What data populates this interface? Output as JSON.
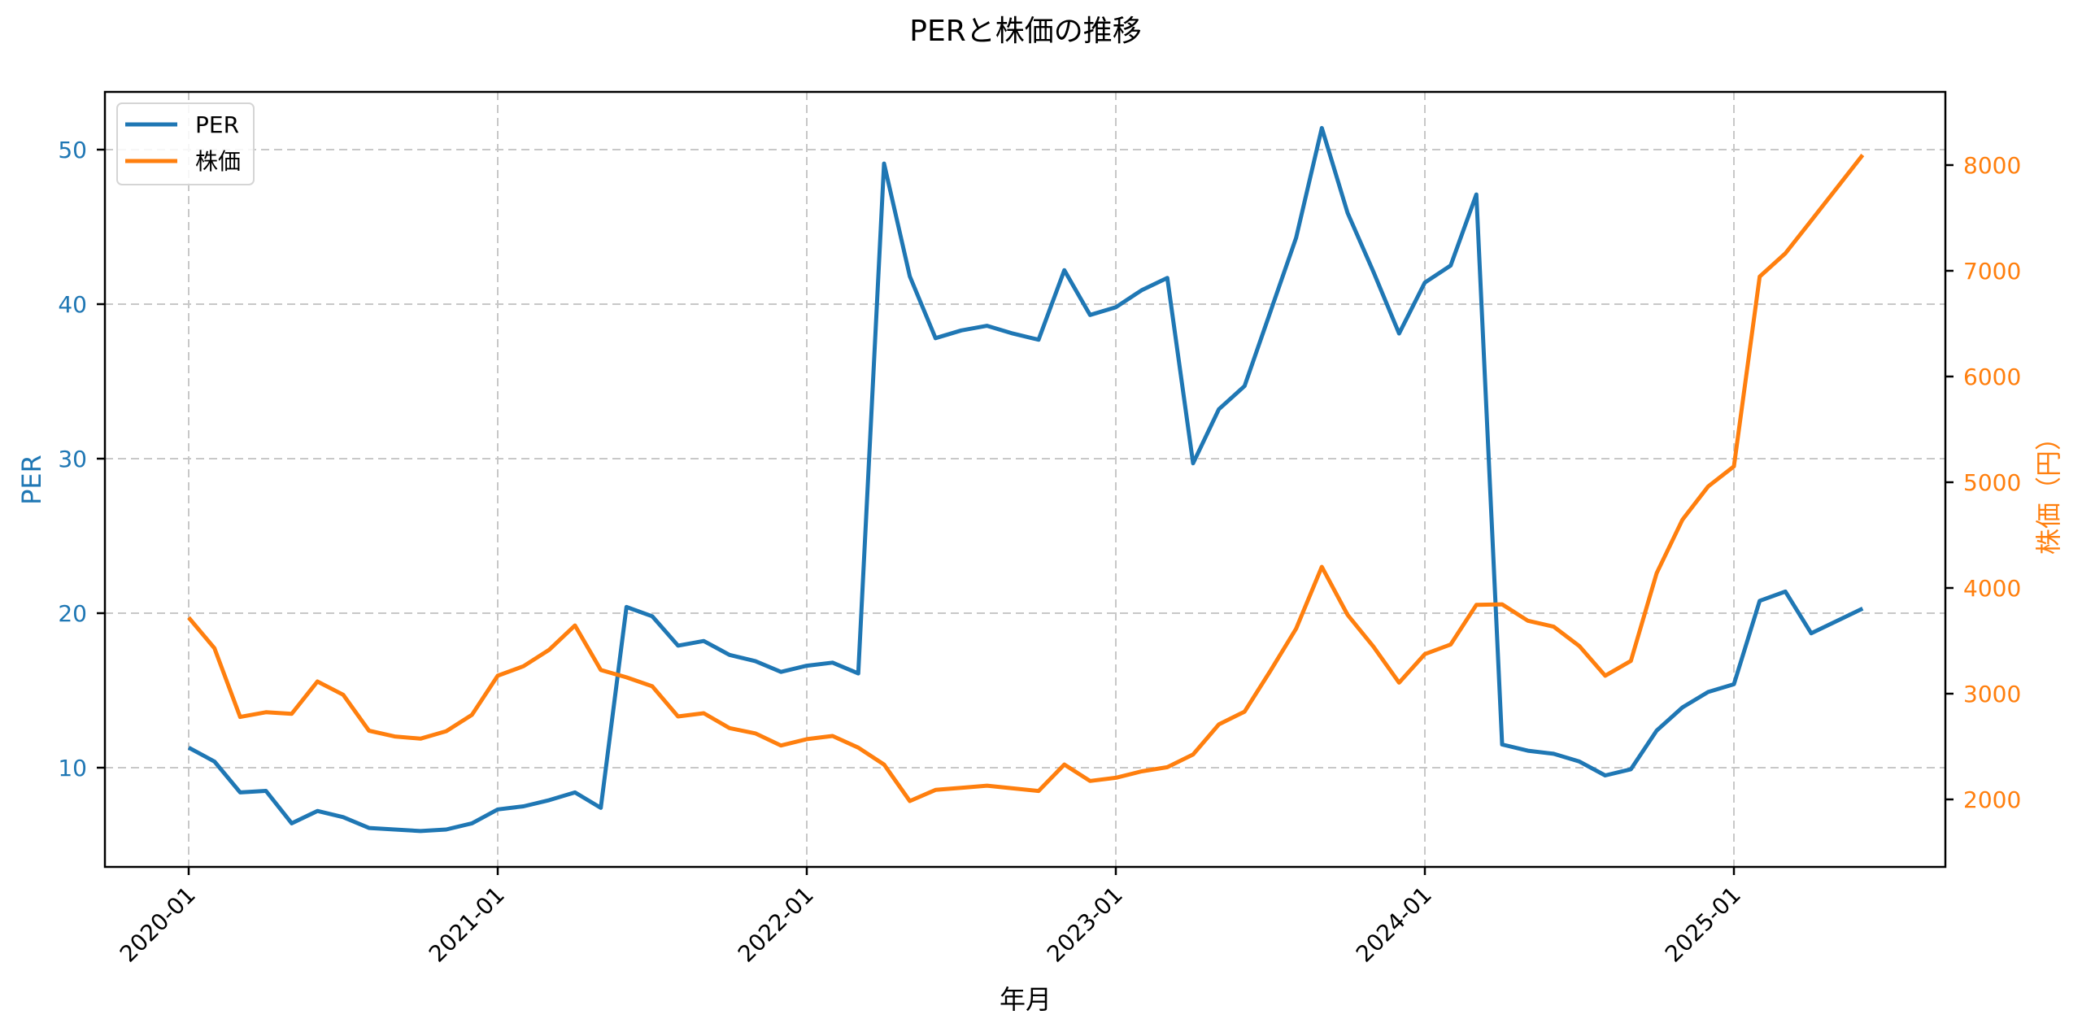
{
  "chart_data": {
    "type": "line",
    "title": "PERと株価の推移",
    "xlabel": "年月",
    "ylabel": "PER",
    "y2label": "株価（円）",
    "x_ticks": [
      "2020-01",
      "2021-01",
      "2022-01",
      "2023-01",
      "2024-01",
      "2025-01"
    ],
    "y_ticks": [
      10,
      20,
      30,
      40,
      50
    ],
    "y2_ticks": [
      2000,
      3000,
      4000,
      5000,
      6000,
      7000,
      8000
    ],
    "ylim": [
      3.5,
      53.6
    ],
    "y2lim": [
      1360,
      8690
    ],
    "grid": true,
    "legend_position": "upper left",
    "x": [
      "2020-01",
      "2020-02",
      "2020-03",
      "2020-04",
      "2020-05",
      "2020-06",
      "2020-07",
      "2020-08",
      "2020-09",
      "2020-10",
      "2020-11",
      "2020-12",
      "2021-01",
      "2021-02",
      "2021-03",
      "2021-04",
      "2021-05",
      "2021-06",
      "2021-07",
      "2021-08",
      "2021-09",
      "2021-10",
      "2021-11",
      "2021-12",
      "2022-01",
      "2022-02",
      "2022-03",
      "2022-04",
      "2022-05",
      "2022-06",
      "2022-07",
      "2022-08",
      "2022-09",
      "2022-10",
      "2022-11",
      "2022-12",
      "2023-01",
      "2023-02",
      "2023-03",
      "2023-04",
      "2023-05",
      "2023-06",
      "2023-07",
      "2023-08",
      "2023-09",
      "2023-10",
      "2023-11",
      "2023-12",
      "2024-01",
      "2024-02",
      "2024-03",
      "2024-04",
      "2024-05",
      "2024-06",
      "2024-07",
      "2024-08",
      "2024-09",
      "2024-10",
      "2024-11",
      "2024-12",
      "2025-01",
      "2025-02",
      "2025-03",
      "2025-04",
      "2025-05",
      "2025-06"
    ],
    "series": [
      {
        "name": "PER",
        "axis": "left",
        "color": "#1f77b4",
        "values": [
          11.3,
          10.4,
          8.4,
          8.5,
          6.4,
          7.2,
          6.8,
          6.1,
          6.0,
          5.9,
          6.0,
          6.4,
          7.3,
          7.5,
          7.9,
          8.4,
          7.4,
          20.4,
          19.8,
          17.9,
          18.2,
          17.3,
          16.9,
          16.2,
          16.6,
          16.8,
          16.1,
          49.1,
          41.8,
          37.8,
          38.3,
          38.6,
          38.1,
          37.7,
          42.2,
          39.3,
          39.8,
          40.9,
          41.7,
          29.7,
          33.2,
          34.7,
          39.5,
          44.3,
          51.4,
          45.9,
          42.1,
          38.1,
          41.4,
          42.5,
          47.1,
          11.5,
          11.1,
          10.9,
          10.4,
          9.5,
          9.9,
          12.4,
          13.9,
          14.9,
          15.4,
          20.8,
          21.4,
          18.7,
          19.5,
          20.3
        ]
      },
      {
        "name": "株価",
        "axis": "right",
        "color": "#ff7f0e",
        "values": [
          3720,
          3430,
          2780,
          2825,
          2810,
          3115,
          2990,
          2650,
          2595,
          2575,
          2645,
          2800,
          3170,
          3260,
          3415,
          3645,
          3225,
          3155,
          3070,
          2785,
          2815,
          2675,
          2625,
          2510,
          2570,
          2600,
          2490,
          2330,
          1985,
          2090,
          2110,
          2130,
          2105,
          2080,
          2330,
          2175,
          2205,
          2265,
          2305,
          2425,
          2710,
          2830,
          3215,
          3615,
          4200,
          3745,
          3445,
          3105,
          3375,
          3465,
          3840,
          3845,
          3690,
          3635,
          3450,
          3170,
          3310,
          4140,
          4645,
          4960,
          5150,
          6945,
          7165,
          7475,
          7785,
          8095
        ]
      }
    ]
  },
  "legend": {
    "items": [
      {
        "label": "PER",
        "color": "#1f77b4"
      },
      {
        "label": "株価",
        "color": "#ff7f0e"
      }
    ]
  },
  "colors": {
    "per": "#1f77b4",
    "price": "#ff7f0e",
    "grid": "#c8c8c8"
  }
}
